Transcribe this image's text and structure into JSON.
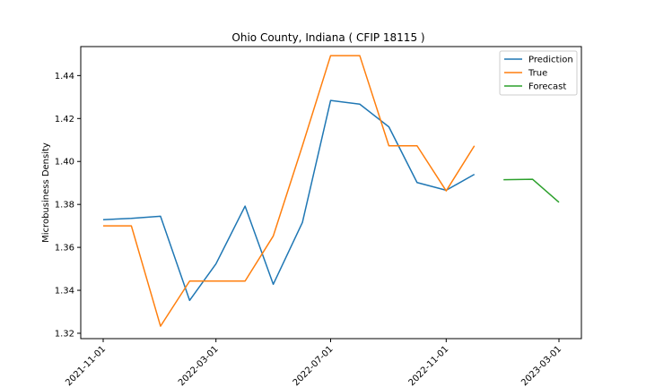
{
  "chart_data": {
    "type": "line",
    "title": "Ohio County, Indiana ( CFIP 18115 )",
    "xlabel": "",
    "ylabel": "Microbusiness Density",
    "x_ticks": [
      "2021-11-01",
      "2022-03-01",
      "2022-07-01",
      "2022-11-01",
      "2023-03-01"
    ],
    "y_ticks": [
      "1.32",
      "1.34",
      "1.36",
      "1.38",
      "1.40",
      "1.42",
      "1.44"
    ],
    "ylim": [
      1.3175,
      1.4535
    ],
    "legend_position": "top-right",
    "series": [
      {
        "name": "Prediction",
        "color": "#1f77b4",
        "x": [
          "2021-11-01",
          "2021-12-01",
          "2022-01-01",
          "2022-02-01",
          "2022-03-01",
          "2022-04-01",
          "2022-05-01",
          "2022-06-01",
          "2022-07-01",
          "2022-08-01",
          "2022-09-01",
          "2022-10-01",
          "2022-11-01",
          "2022-12-01"
        ],
        "values": [
          1.3729,
          1.3735,
          1.3745,
          1.3353,
          1.3523,
          1.3792,
          1.3428,
          1.3716,
          1.4284,
          1.4267,
          1.4161,
          1.3902,
          1.3866,
          1.394
        ]
      },
      {
        "name": "True",
        "color": "#ff7f0e",
        "x": [
          "2021-11-01",
          "2021-12-01",
          "2022-01-01",
          "2022-02-01",
          "2022-03-01",
          "2022-04-01",
          "2022-05-01",
          "2022-06-01",
          "2022-07-01",
          "2022-08-01",
          "2022-09-01",
          "2022-10-01",
          "2022-11-01",
          "2022-12-01"
        ],
        "values": [
          1.37,
          1.37,
          1.3233,
          1.3443,
          1.3443,
          1.3443,
          1.3653,
          1.4073,
          1.4493,
          1.4493,
          1.4073,
          1.4073,
          1.3863,
          1.4073
        ]
      },
      {
        "name": "Forecast",
        "color": "#2ca02c",
        "x": [
          "2023-01-01",
          "2023-02-01",
          "2023-03-01"
        ],
        "values": [
          1.3915,
          1.3917,
          1.381
        ]
      }
    ]
  }
}
